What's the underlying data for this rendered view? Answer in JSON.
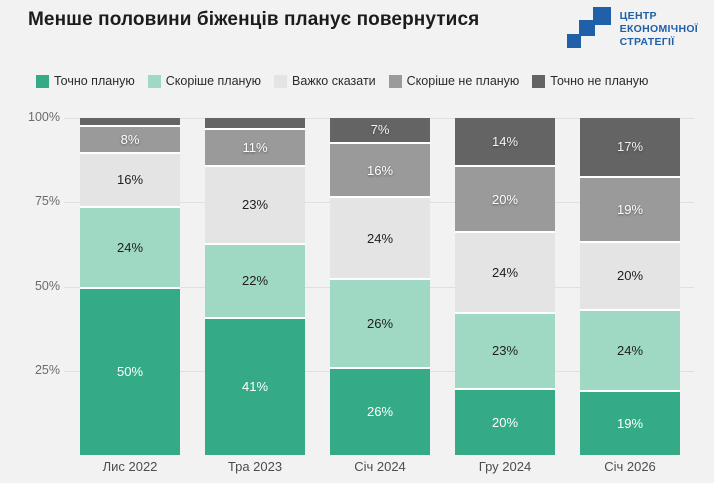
{
  "header": {
    "title": "Менше половини біженців планує повернутися",
    "logo": {
      "lines": [
        "ЦЕНТР",
        "ЕКОНОМІЧНОЇ",
        "СТРАТЕГІЇ"
      ],
      "color": "#2060a8"
    }
  },
  "colors": {
    "background": "#f2f2f2",
    "gridline": "#e0e0e0",
    "title_text": "#1c1c1c",
    "axis_text": "#6b6b6b",
    "xlabel_text": "#4d4d4d"
  },
  "chart_data": {
    "type": "bar",
    "stacked": true,
    "unit": "%",
    "title": "Менше половини біженців планує повернутися",
    "categories": [
      "Лис 2022",
      "Тра 2023",
      "Січ 2024",
      "Гру 2024",
      "Січ 2026"
    ],
    "series": [
      {
        "name": "Точно планую",
        "color": "#34ab86",
        "label_color": "#ffffff",
        "label_shadow": false,
        "values": [
          50,
          41,
          26,
          20,
          19
        ],
        "labels": [
          "50%",
          "41%",
          "26%",
          "20%",
          "19%"
        ]
      },
      {
        "name": "Скоріше планую",
        "color": "#9fd9c4",
        "label_color": "#1f1f1f",
        "label_shadow": false,
        "values": [
          24,
          22,
          26,
          23,
          24
        ],
        "labels": [
          "24%",
          "22%",
          "26%",
          "23%",
          "24%"
        ]
      },
      {
        "name": "Важко сказати",
        "color": "#e4e4e4",
        "label_color": "#1f1f1f",
        "label_shadow": false,
        "values": [
          16,
          23,
          24,
          24,
          20
        ],
        "labels": [
          "16%",
          "23%",
          "24%",
          "24%",
          "20%"
        ]
      },
      {
        "name": "Скоріше не планую",
        "color": "#9a9a9a",
        "label_color": "#ffffff",
        "label_shadow": true,
        "values": [
          8,
          11,
          16,
          20,
          19
        ],
        "labels": [
          "8%",
          "11%",
          "16%",
          "20%",
          "19%"
        ]
      },
      {
        "name": "Точно не планую",
        "color": "#646464",
        "label_color": "#f2f2f2",
        "label_shadow": true,
        "values": [
          2,
          3,
          7,
          14,
          17
        ],
        "labels": [
          "",
          "",
          "7%",
          "14%",
          "17%"
        ]
      }
    ],
    "yticks": [
      {
        "value": 100,
        "label": "100%"
      },
      {
        "value": 75,
        "label": "75%"
      },
      {
        "value": 50,
        "label": "50%"
      },
      {
        "value": 25,
        "label": "25%"
      }
    ],
    "ylim": [
      0,
      100
    ],
    "grid": true,
    "legend_position": "top"
  }
}
